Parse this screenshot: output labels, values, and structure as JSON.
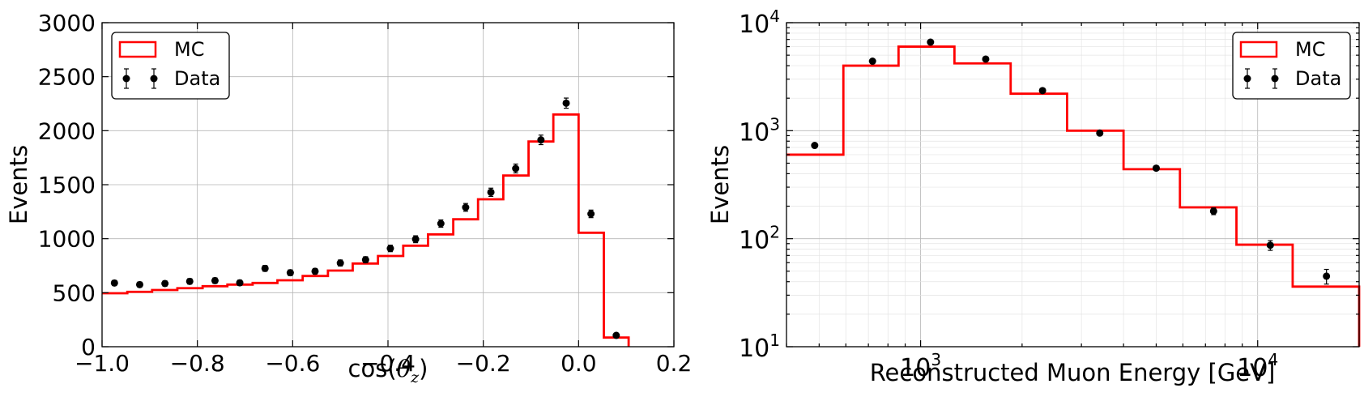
{
  "chart_data": [
    {
      "type": "line",
      "xlabel_prefix": "cos(",
      "xlabel_theta": "θ",
      "xlabel_sub": "z",
      "xlabel_suffix": ")",
      "ylabel": "Events",
      "xlim": [
        -1.0,
        0.2
      ],
      "ylim": [
        0,
        3000
      ],
      "xticks": [
        -1.0,
        -0.8,
        -0.6,
        -0.4,
        -0.2,
        0.0,
        0.2
      ],
      "xtick_labels": [
        "−1.0",
        "−0.8",
        "−0.6",
        "−0.4",
        "−0.2",
        "0.0",
        "0.2"
      ],
      "yticks": [
        0,
        500,
        1000,
        1500,
        2000,
        2500,
        3000
      ],
      "ytick_labels": [
        "0",
        "500",
        "1000",
        "1500",
        "2000",
        "2500",
        "3000"
      ],
      "grid": true,
      "legend_position": "top-left",
      "series": [
        {
          "name": "MC",
          "kind": "step-histogram",
          "color": "#ff0000",
          "bin_edges": [
            -1.0,
            -0.947,
            -0.895,
            -0.842,
            -0.789,
            -0.737,
            -0.684,
            -0.632,
            -0.579,
            -0.526,
            -0.474,
            -0.421,
            -0.368,
            -0.316,
            -0.263,
            -0.211,
            -0.158,
            -0.105,
            -0.053,
            0.0,
            0.053,
            0.105
          ],
          "values": [
            495,
            508,
            525,
            542,
            560,
            575,
            590,
            615,
            655,
            705,
            770,
            840,
            935,
            1040,
            1180,
            1365,
            1585,
            1900,
            2150,
            1055,
            85
          ]
        },
        {
          "name": "Data",
          "kind": "errorbar",
          "color": "#000000",
          "x": [
            -0.974,
            -0.921,
            -0.868,
            -0.816,
            -0.763,
            -0.711,
            -0.658,
            -0.605,
            -0.553,
            -0.5,
            -0.447,
            -0.395,
            -0.342,
            -0.289,
            -0.237,
            -0.184,
            -0.132,
            -0.079,
            -0.026,
            0.026,
            0.079
          ],
          "y": [
            590,
            575,
            585,
            605,
            612,
            592,
            725,
            685,
            698,
            775,
            805,
            910,
            995,
            1140,
            1290,
            1430,
            1650,
            1915,
            2255,
            1230,
            105
          ],
          "yerr": [
            24,
            24,
            24,
            25,
            25,
            24,
            27,
            26,
            26,
            28,
            28,
            30,
            32,
            34,
            36,
            38,
            41,
            44,
            47,
            35,
            10
          ]
        }
      ]
    },
    {
      "type": "line",
      "xlabel": "Reconstructed Muon Energy [GeV]",
      "ylabel": "Events",
      "xscale": "log",
      "yscale": "log",
      "xlim": [
        400,
        20000
      ],
      "ylim": [
        10,
        10000
      ],
      "xtick_values": [
        1000,
        10000
      ],
      "xtick_base": "10",
      "xtick_exponents": [
        "3",
        "4"
      ],
      "ytick_values": [
        10,
        100,
        1000,
        10000
      ],
      "ytick_base": "10",
      "ytick_exponents": [
        "1",
        "2",
        "3",
        "4"
      ],
      "grid": true,
      "legend_position": "top-right",
      "series": [
        {
          "name": "MC",
          "kind": "step-histogram",
          "color": "#ff0000",
          "bin_edges": [
            400,
            590,
            860,
            1260,
            1850,
            2720,
            4000,
            5880,
            8650,
            12700,
            18700,
            20000
          ],
          "values": [
            600,
            4000,
            6000,
            4200,
            2200,
            1000,
            440,
            195,
            88,
            36,
            36
          ]
        },
        {
          "name": "Data",
          "kind": "errorbar",
          "color": "#000000",
          "x": [
            485,
            720,
            1070,
            1560,
            2300,
            3400,
            5000,
            7400,
            10900,
            16000
          ],
          "y": [
            730,
            4400,
            6600,
            4600,
            2350,
            950,
            450,
            180,
            87,
            45
          ],
          "yerr": [
            27,
            66,
            81,
            68,
            48,
            31,
            21,
            13,
            9,
            7
          ]
        }
      ]
    }
  ]
}
